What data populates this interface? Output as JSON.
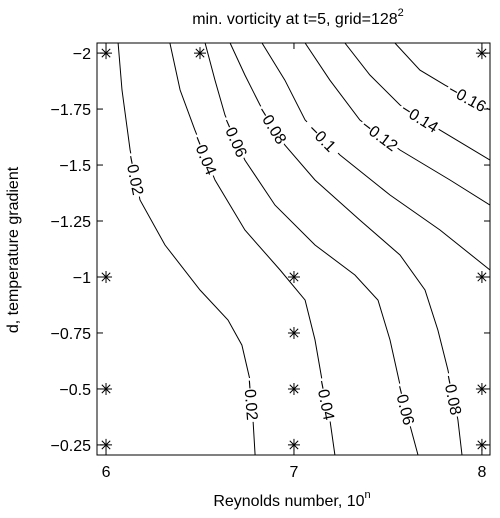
{
  "chart_data": {
    "type": "contour",
    "title": {
      "text": "min. vorticity at t=5, grid=128",
      "sup": "2"
    },
    "x_label": {
      "text": "Reynolds number, 10",
      "sup": "n"
    },
    "y_label": "d, temperature gradient",
    "xlim": [
      5.952,
      8.043
    ],
    "ylim": [
      -0.205,
      -2.045
    ],
    "xticks": [
      6,
      7,
      8
    ],
    "yticks": [
      {
        "value": -2,
        "label": "−2"
      },
      {
        "value": -1.75,
        "label": "−1.75"
      },
      {
        "value": -1.5,
        "label": "−1.5"
      },
      {
        "value": -1.25,
        "label": "−1.25"
      },
      {
        "value": -1,
        "label": "−1"
      },
      {
        "value": -0.75,
        "label": "−0.75"
      },
      {
        "value": -0.5,
        "label": "−0.5"
      },
      {
        "value": -0.25,
        "label": "−0.25"
      }
    ],
    "samples": {
      "x": [
        6,
        6.5,
        8,
        6,
        7,
        8,
        7,
        6,
        7,
        8,
        6,
        7,
        8
      ],
      "y": [
        -2,
        -2,
        -2,
        -1,
        -1,
        -1,
        -0.75,
        -0.5,
        -0.5,
        -0.5,
        -0.25,
        -0.25,
        -0.25
      ]
    },
    "contours": [
      {
        "level": -0.02,
        "labels": [
          "−0.02",
          "−0.02"
        ],
        "x": [
          6.064,
          6.085,
          6.128,
          6.181,
          6.314,
          6.5,
          6.649,
          6.723,
          6.766,
          6.782,
          6.793
        ],
        "y": [
          -2.045,
          -1.835,
          -1.567,
          -1.344,
          -1.143,
          -0.942,
          -0.808,
          -0.696,
          -0.54,
          -0.362,
          -0.205
        ]
      },
      {
        "level": -0.04,
        "labels": [
          "−0.04",
          "−0.04"
        ],
        "x": [
          6.34,
          6.394,
          6.473,
          6.58,
          6.739,
          6.926,
          7.059,
          7.112,
          7.149,
          7.191,
          7.218
        ],
        "y": [
          -2.045,
          -1.835,
          -1.656,
          -1.433,
          -1.21,
          -1.031,
          -0.897,
          -0.719,
          -0.54,
          -0.362,
          -0.205
        ]
      },
      {
        "level": -0.06,
        "labels": [
          "−0.06",
          "−0.06"
        ],
        "x": [
          6.527,
          6.58,
          6.633,
          6.739,
          6.899,
          7.112,
          7.324,
          7.447,
          7.511,
          7.564,
          7.617,
          7.66
        ],
        "y": [
          -2.045,
          -1.879,
          -1.723,
          -1.522,
          -1.321,
          -1.143,
          -1.009,
          -0.897,
          -0.719,
          -0.518,
          -0.339,
          -0.205
        ]
      },
      {
        "level": -0.08,
        "labels": [
          "−0.08",
          "−0.08"
        ],
        "x": [
          6.66,
          6.739,
          6.819,
          6.952,
          7.112,
          7.351,
          7.564,
          7.697,
          7.766,
          7.819,
          7.872,
          7.894
        ],
        "y": [
          -2.045,
          -1.902,
          -1.768,
          -1.589,
          -1.433,
          -1.254,
          -1.098,
          -0.942,
          -0.763,
          -0.585,
          -0.362,
          -0.205
        ]
      },
      {
        "level": -0.1,
        "labels": [
          "−0.1"
        ],
        "x": [
          6.83,
          6.952,
          7.059,
          7.245,
          7.511,
          7.777,
          8.043
        ],
        "y": [
          -2.045,
          -1.879,
          -1.701,
          -1.545,
          -1.366,
          -1.21,
          -1.031
        ]
      },
      {
        "level": -0.12,
        "labels": [
          "−0.12"
        ],
        "x": [
          7.059,
          7.191,
          7.351,
          7.564,
          7.83,
          8.043
        ],
        "y": [
          -2.045,
          -1.879,
          -1.701,
          -1.567,
          -1.433,
          -1.321
        ]
      },
      {
        "level": -0.14,
        "labels": [
          "−0.14"
        ],
        "x": [
          7.271,
          7.404,
          7.564,
          7.777,
          8.043
        ],
        "y": [
          -2.045,
          -1.902,
          -1.768,
          -1.656,
          -1.522
        ]
      },
      {
        "level": -0.16,
        "labels": [
          "−0.16"
        ],
        "x": [
          7.537,
          7.67,
          7.803,
          8.043
        ],
        "y": [
          -2.045,
          -1.924,
          -1.857,
          -1.746
        ]
      }
    ]
  }
}
